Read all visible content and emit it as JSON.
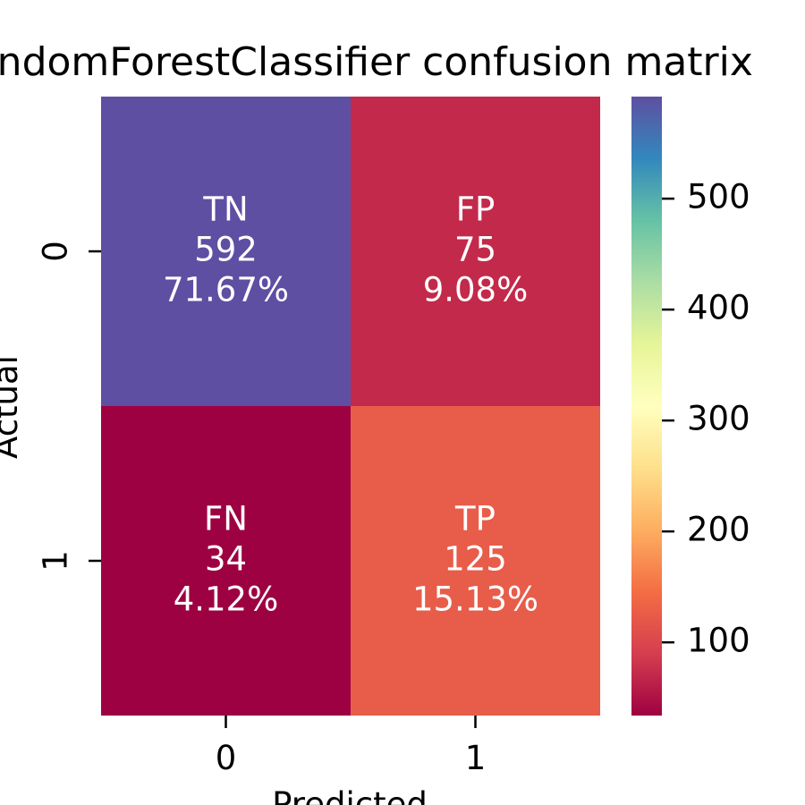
{
  "chart_data": {
    "type": "heatmap",
    "title": "RandomForestClassifier confusion matrix",
    "xlabel": "Predicted",
    "ylabel": "Actual",
    "x_categories": [
      "0",
      "1"
    ],
    "y_categories": [
      "0",
      "1"
    ],
    "cells": [
      [
        {
          "label": "TN",
          "count": "592",
          "percent": "71.67%",
          "value": 592
        },
        {
          "label": "FP",
          "count": "75",
          "percent": "9.08%",
          "value": 75
        }
      ],
      [
        {
          "label": "FN",
          "count": "34",
          "percent": "4.12%",
          "value": 34
        },
        {
          "label": "TP",
          "count": "125",
          "percent": "15.13%",
          "value": 125
        }
      ]
    ],
    "colorbar": {
      "colormap": "Spectral",
      "range": [
        34,
        592
      ],
      "ticks": [
        100,
        200,
        300,
        400,
        500
      ],
      "tick_labels": [
        "100",
        "200",
        "300",
        "400",
        "500"
      ]
    },
    "colors": {
      "tn": "#5e4fa2",
      "fp": "#c3294a",
      "fn": "#9e0142",
      "tp": "#e75d4a"
    }
  }
}
